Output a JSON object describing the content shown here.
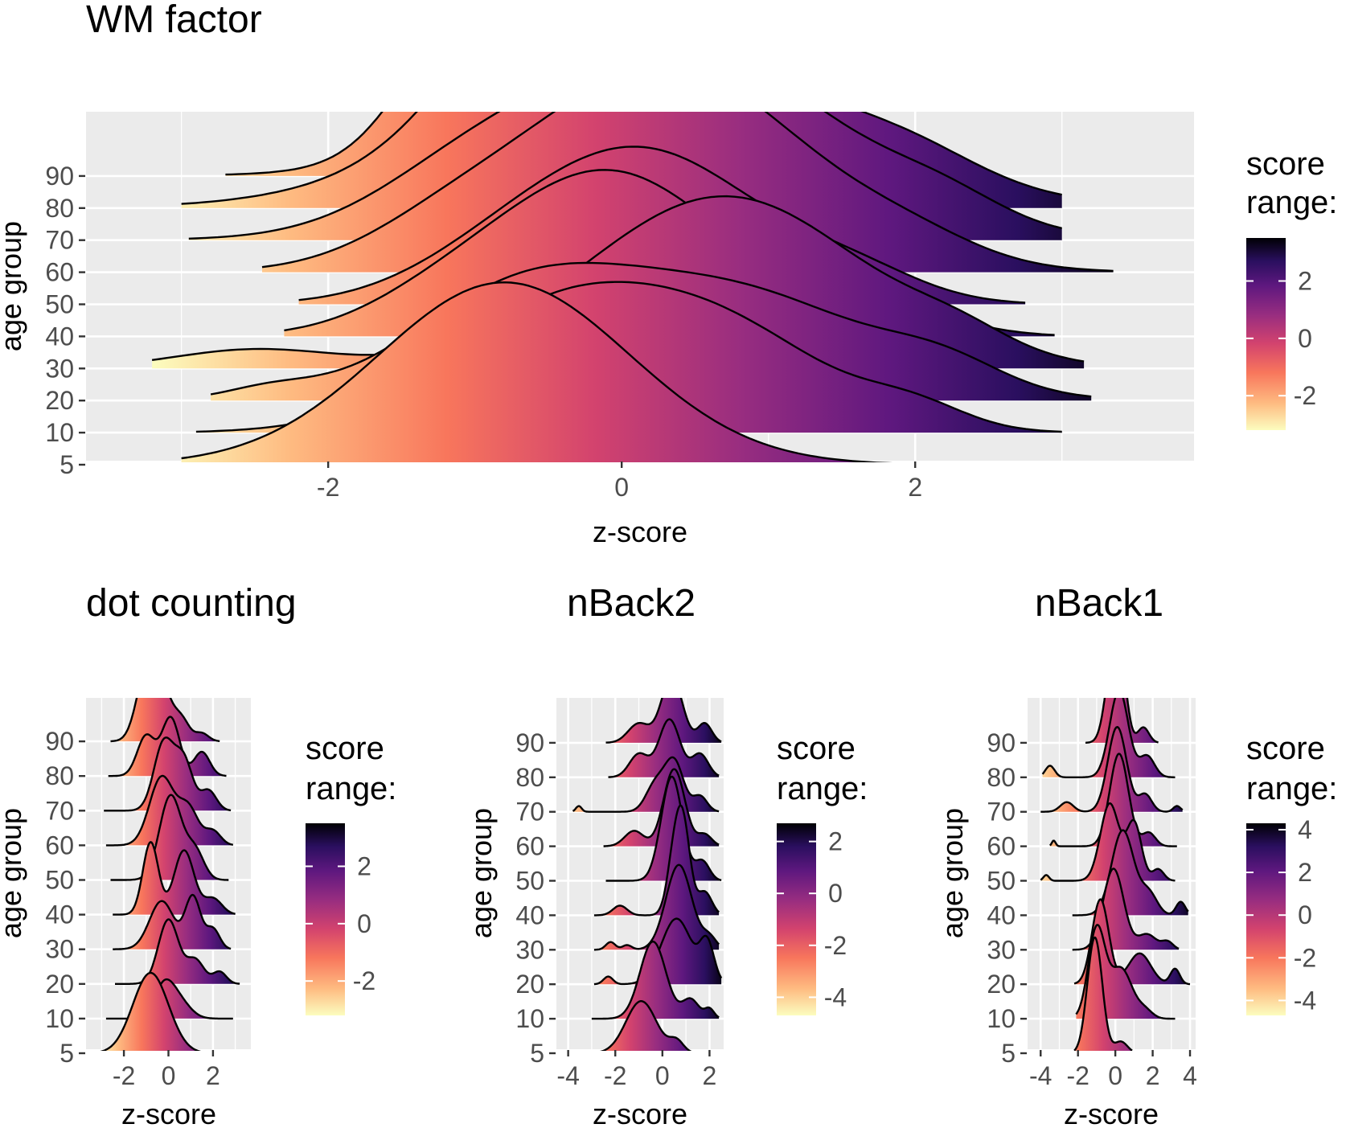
{
  "figure": {
    "ylabel": "age group",
    "xlabel": "z-score",
    "legend_title": "score range:"
  },
  "chart_data": [
    {
      "type": "ridgeline",
      "title": "WM factor",
      "xlabel": "z-score",
      "ylabel": "age group",
      "categories": [
        "5",
        "10",
        "20",
        "30",
        "40",
        "50",
        "60",
        "70",
        "80",
        "90"
      ],
      "xlim": [
        -3.65,
        3.9
      ],
      "x_ticks": [
        -2,
        0,
        2
      ],
      "x_tick_labels": [
        "-2",
        "0",
        "2"
      ],
      "grid": true,
      "legend": {
        "title": "score range:",
        "position": "right",
        "range": [
          -3.2,
          3.5
        ],
        "ticks": [
          -2,
          0,
          2
        ],
        "tick_labels": [
          "-2",
          "0",
          "2"
        ]
      },
      "ridges": [
        {
          "group": "5",
          "min": -3.0,
          "max": 1.9,
          "peaks": [
            [
              -0.8,
              0.85,
              2.7
            ]
          ]
        },
        {
          "group": "10",
          "min": -2.9,
          "max": 3.0,
          "peaks": [
            [
              -0.4,
              0.8,
              1.85
            ],
            [
              0.8,
              0.7,
              1.15
            ],
            [
              2.0,
              0.35,
              0.3
            ]
          ]
        },
        {
          "group": "20",
          "min": -2.8,
          "max": 3.2,
          "peaks": [
            [
              -2.4,
              0.3,
              0.15
            ],
            [
              -0.7,
              0.75,
              1.5
            ],
            [
              0.8,
              0.9,
              1.55
            ],
            [
              2.2,
              0.4,
              0.35
            ]
          ]
        },
        {
          "group": "30",
          "min": -3.2,
          "max": 3.15,
          "peaks": [
            [
              -2.5,
              0.55,
              0.28
            ],
            [
              0.7,
              0.95,
              2.55
            ],
            [
              2.3,
              0.35,
              0.25
            ]
          ]
        },
        {
          "group": "40",
          "min": -2.3,
          "max": 2.95,
          "peaks": [
            [
              -1.3,
              0.5,
              0.25
            ],
            [
              -0.1,
              0.8,
              2.45
            ],
            [
              1.7,
              0.5,
              0.45
            ]
          ]
        },
        {
          "group": "50",
          "min": -2.2,
          "max": 2.75,
          "peaks": [
            [
              -0.9,
              0.6,
              0.35
            ],
            [
              0.15,
              0.8,
              2.25
            ],
            [
              1.6,
              0.45,
              0.35
            ]
          ]
        },
        {
          "group": "60",
          "min": -2.45,
          "max": 3.35,
          "peaks": [
            [
              -1.2,
              0.55,
              0.4
            ],
            [
              0.3,
              0.95,
              3.05
            ],
            [
              2.0,
              0.45,
              0.25
            ]
          ]
        },
        {
          "group": "70",
          "min": -2.95,
          "max": 3.0,
          "peaks": [
            [
              -1.1,
              0.6,
              0.5
            ],
            [
              0.4,
              1.05,
              2.9
            ],
            [
              2.2,
              0.4,
              0.3
            ]
          ]
        },
        {
          "group": "80",
          "min": -3.0,
          "max": 3.0,
          "peaks": [
            [
              -0.6,
              0.55,
              1.4
            ],
            [
              0.25,
              1.2,
              2.4
            ],
            [
              2.0,
              0.45,
              0.28
            ]
          ]
        },
        {
          "group": "90",
          "min": -2.7,
          "max": 2.45,
          "peaks": [
            [
              -1.05,
              0.42,
              2.0
            ],
            [
              0.5,
              0.5,
              3.0
            ],
            [
              -0.1,
              1.0,
              0.6
            ]
          ]
        }
      ]
    },
    {
      "type": "ridgeline",
      "title": "dot counting",
      "xlabel": "z-score",
      "ylabel": "age group",
      "categories": [
        "5",
        "10",
        "20",
        "30",
        "40",
        "50",
        "60",
        "70",
        "80",
        "90"
      ],
      "xlim": [
        -3.7,
        3.7
      ],
      "x_ticks": [
        -2,
        0,
        2
      ],
      "x_tick_labels": [
        "-2",
        "0",
        "2"
      ],
      "grid": true,
      "legend": {
        "title": "score range:",
        "position": "right",
        "range": [
          -3.2,
          3.5
        ],
        "ticks": [
          -2,
          0,
          2
        ],
        "tick_labels": [
          "-2",
          "0",
          "2"
        ]
      },
      "ridges": [
        {
          "group": "5",
          "min": -3.2,
          "max": 2.0,
          "peaks": [
            [
              -0.8,
              0.8,
              2.0
            ]
          ]
        },
        {
          "group": "10",
          "min": -2.8,
          "max": 2.9,
          "peaks": [
            [
              -0.2,
              0.45,
              0.8
            ],
            [
              0.5,
              0.5,
              0.4
            ]
          ]
        },
        {
          "group": "20",
          "min": -2.4,
          "max": 3.2,
          "peaks": [
            [
              0.0,
              0.45,
              1.6
            ],
            [
              1.2,
              0.4,
              0.6
            ],
            [
              2.3,
              0.3,
              0.3
            ]
          ]
        },
        {
          "group": "30",
          "min": -2.5,
          "max": 2.8,
          "peaks": [
            [
              -0.3,
              0.55,
              1.2
            ],
            [
              1.1,
              0.35,
              1.3
            ],
            [
              2.0,
              0.3,
              0.5
            ]
          ]
        },
        {
          "group": "40",
          "min": -2.5,
          "max": 3.0,
          "peaks": [
            [
              -0.8,
              0.35,
              1.8
            ],
            [
              0.7,
              0.45,
              1.6
            ],
            [
              2.0,
              0.4,
              0.4
            ]
          ]
        },
        {
          "group": "50",
          "min": -2.6,
          "max": 2.7,
          "peaks": [
            [
              0.1,
              0.5,
              2.1
            ],
            [
              1.2,
              0.4,
              0.7
            ]
          ]
        },
        {
          "group": "60",
          "min": -2.8,
          "max": 2.9,
          "peaks": [
            [
              -0.3,
              0.55,
              1.7
            ],
            [
              0.9,
              0.45,
              0.9
            ],
            [
              2.0,
              0.35,
              0.35
            ]
          ]
        },
        {
          "group": "70",
          "min": -2.9,
          "max": 2.8,
          "peaks": [
            [
              -0.2,
              0.45,
              1.7
            ],
            [
              0.7,
              0.4,
              1.2
            ],
            [
              1.8,
              0.35,
              0.5
            ]
          ]
        },
        {
          "group": "80",
          "min": -2.7,
          "max": 2.6,
          "peaks": [
            [
              -1.0,
              0.4,
              1.0
            ],
            [
              0.1,
              0.4,
              1.45
            ],
            [
              1.5,
              0.35,
              0.6
            ]
          ]
        },
        {
          "group": "90",
          "min": -2.6,
          "max": 2.3,
          "peaks": [
            [
              -1.0,
              0.45,
              1.6
            ],
            [
              -0.3,
              0.45,
              1.2
            ],
            [
              0.6,
              0.35,
              0.5
            ],
            [
              1.5,
              0.3,
              0.2
            ]
          ]
        }
      ]
    },
    {
      "type": "ridgeline",
      "title": "nBack2",
      "xlabel": "z-score",
      "ylabel": "age group",
      "categories": [
        "5",
        "10",
        "20",
        "30",
        "40",
        "50",
        "60",
        "70",
        "80",
        "90"
      ],
      "xlim": [
        -4.5,
        2.6
      ],
      "x_ticks": [
        -4,
        -2,
        0,
        2
      ],
      "x_tick_labels": [
        "-4",
        "-2",
        "0",
        "2"
      ],
      "grid": true,
      "legend": {
        "title": "score range:",
        "position": "right",
        "range": [
          -4.7,
          2.7
        ],
        "ticks": [
          -4,
          -2,
          0,
          2
        ],
        "tick_labels": [
          "-4",
          "-2",
          "0",
          "2"
        ]
      },
      "ridges": [
        {
          "group": "5",
          "min": -3.3,
          "max": 1.7,
          "peaks": [
            [
              -0.9,
              0.65,
              1.35
            ],
            [
              0.6,
              0.3,
              0.3
            ]
          ]
        },
        {
          "group": "10",
          "min": -3.0,
          "max": 2.4,
          "peaks": [
            [
              -0.4,
              0.55,
              2.0
            ],
            [
              1.2,
              0.35,
              0.5
            ],
            [
              2.0,
              0.2,
              0.25
            ]
          ]
        },
        {
          "group": "20",
          "min": -2.9,
          "max": 2.5,
          "peaks": [
            [
              -2.3,
              0.2,
              0.2
            ],
            [
              0.6,
              0.65,
              1.7
            ],
            [
              1.9,
              0.3,
              1.0
            ]
          ]
        },
        {
          "group": "30",
          "min": -2.9,
          "max": 2.4,
          "peaks": [
            [
              -2.2,
              0.2,
              0.2
            ],
            [
              -1.5,
              0.2,
              0.12
            ],
            [
              0.7,
              0.55,
              2.2
            ],
            [
              2.0,
              0.3,
              0.3
            ]
          ]
        },
        {
          "group": "40",
          "min": -2.9,
          "max": 2.4,
          "peaks": [
            [
              -1.8,
              0.3,
              0.25
            ],
            [
              0.5,
              0.3,
              1.4
            ],
            [
              0.9,
              0.3,
              2.1
            ],
            [
              1.8,
              0.3,
              0.6
            ]
          ]
        },
        {
          "group": "50",
          "min": -2.4,
          "max": 2.5,
          "peaks": [
            [
              0.4,
              0.45,
              2.7
            ],
            [
              1.7,
              0.3,
              0.5
            ]
          ]
        },
        {
          "group": "60",
          "min": -2.5,
          "max": 2.4,
          "peaks": [
            [
              -1.2,
              0.4,
              0.4
            ],
            [
              0.5,
              0.45,
              2.0
            ],
            [
              1.8,
              0.3,
              0.3
            ]
          ]
        },
        {
          "group": "70",
          "min": -3.8,
          "max": 2.4,
          "peaks": [
            [
              -3.55,
              0.12,
              0.15
            ],
            [
              -0.3,
              0.4,
              0.7
            ],
            [
              0.5,
              0.4,
              1.3
            ],
            [
              1.6,
              0.3,
              0.4
            ]
          ]
        },
        {
          "group": "80",
          "min": -2.3,
          "max": 2.4,
          "peaks": [
            [
              -1.0,
              0.4,
              0.6
            ],
            [
              0.3,
              0.45,
              1.5
            ],
            [
              1.6,
              0.35,
              0.6
            ]
          ]
        },
        {
          "group": "90",
          "min": -2.4,
          "max": 2.5,
          "peaks": [
            [
              -1.0,
              0.45,
              0.5
            ],
            [
              0.4,
              0.45,
              1.7
            ],
            [
              1.8,
              0.3,
              0.5
            ]
          ]
        }
      ]
    },
    {
      "type": "ridgeline",
      "title": "nBack1",
      "xlabel": "z-score",
      "ylabel": "age group",
      "categories": [
        "5",
        "10",
        "20",
        "30",
        "40",
        "50",
        "60",
        "70",
        "80",
        "90"
      ],
      "xlim": [
        -4.7,
        4.3
      ],
      "x_ticks": [
        -4,
        -2,
        0,
        2,
        4
      ],
      "x_tick_labels": [
        "-4",
        "-2",
        "0",
        "2",
        "4"
      ],
      "grid": true,
      "legend": {
        "title": "score range:",
        "position": "right",
        "range": [
          -4.7,
          4.3
        ],
        "ticks": [
          -4,
          -2,
          0,
          2,
          4
        ],
        "tick_labels": [
          "-4",
          "-2",
          "0",
          "2",
          "4"
        ]
      },
      "ridges": [
        {
          "group": "5",
          "min": -2.2,
          "max": 0.9,
          "peaks": [
            [
              -1.1,
              0.4,
              3.0
            ],
            [
              0.3,
              0.35,
              0.3
            ]
          ]
        },
        {
          "group": "10",
          "min": -2.1,
          "max": 3.2,
          "peaks": [
            [
              -1.0,
              0.45,
              2.3
            ],
            [
              0.3,
              0.6,
              1.3
            ],
            [
              1.6,
              0.4,
              0.2
            ]
          ]
        },
        {
          "group": "20",
          "min": -2.2,
          "max": 4.0,
          "peaks": [
            [
              -0.8,
              0.45,
              2.2
            ],
            [
              1.3,
              0.6,
              0.8
            ],
            [
              3.2,
              0.25,
              0.4
            ]
          ]
        },
        {
          "group": "30",
          "min": -2.3,
          "max": 3.4,
          "peaks": [
            [
              -0.1,
              0.55,
              2.1
            ],
            [
              1.7,
              0.5,
              0.4
            ],
            [
              2.8,
              0.3,
              0.2
            ]
          ]
        },
        {
          "group": "40",
          "min": -2.3,
          "max": 3.9,
          "peaks": [
            [
              0.4,
              0.6,
              2.2
            ],
            [
              1.8,
              0.45,
              0.55
            ],
            [
              3.5,
              0.25,
              0.35
            ]
          ]
        },
        {
          "group": "50",
          "min": -4.0,
          "max": 3.2,
          "peaks": [
            [
              -3.7,
              0.15,
              0.15
            ],
            [
              -0.3,
              0.5,
              2.0
            ],
            [
              1.0,
              0.4,
              1.5
            ],
            [
              2.3,
              0.3,
              0.3
            ]
          ]
        },
        {
          "group": "60",
          "min": -3.5,
          "max": 3.3,
          "peaks": [
            [
              -3.3,
              0.1,
              0.15
            ],
            [
              0.2,
              0.5,
              2.4
            ],
            [
              1.8,
              0.35,
              0.35
            ]
          ]
        },
        {
          "group": "70",
          "min": -4.0,
          "max": 3.6,
          "peaks": [
            [
              -2.6,
              0.35,
              0.25
            ],
            [
              0.1,
              0.5,
              2.2
            ],
            [
              1.6,
              0.35,
              0.45
            ],
            [
              3.3,
              0.2,
              0.15
            ]
          ]
        },
        {
          "group": "80",
          "min": -3.9,
          "max": 3.2,
          "peaks": [
            [
              -3.5,
              0.25,
              0.3
            ],
            [
              0.2,
              0.5,
              2.25
            ],
            [
              1.7,
              0.4,
              0.55
            ]
          ]
        },
        {
          "group": "90",
          "min": -1.6,
          "max": 2.3,
          "peaks": [
            [
              -0.1,
              0.4,
              2.3
            ],
            [
              0.4,
              0.3,
              1.0
            ],
            [
              1.5,
              0.3,
              0.4
            ]
          ]
        }
      ]
    }
  ]
}
